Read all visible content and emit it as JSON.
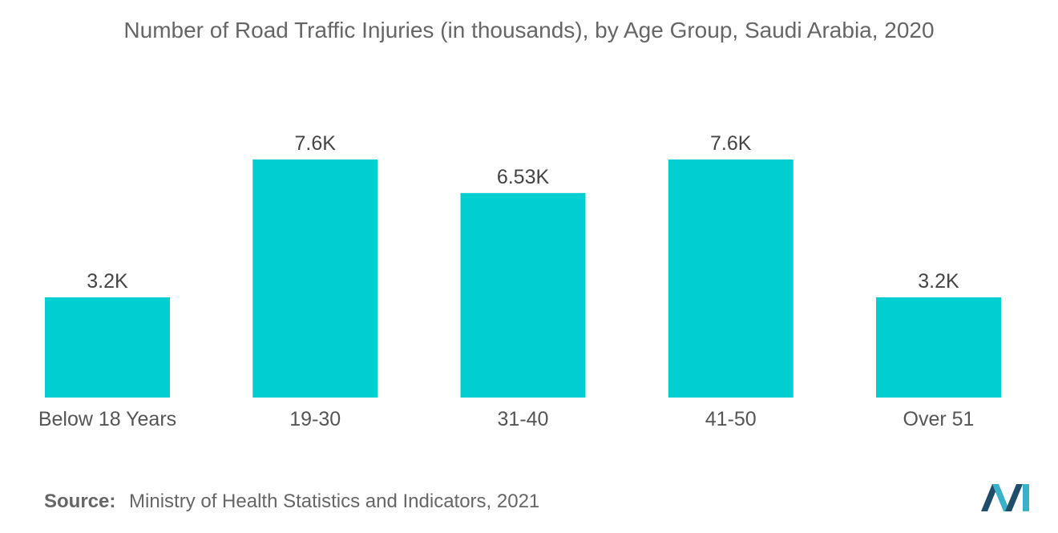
{
  "chart_data": {
    "type": "bar",
    "title": "Number of Road Traffic Injuries (in thousands), by Age Group, Saudi Arabia, 2020",
    "categories": [
      "Below 18 Years",
      "19-30",
      "31-40",
      "41-50",
      "Over 51"
    ],
    "values": [
      3.2,
      7.6,
      6.53,
      7.6,
      3.2
    ],
    "data_labels": [
      "3.2K",
      "7.6K",
      "6.53K",
      "7.6K",
      "3.2K"
    ],
    "xlabel": "",
    "ylabel": "",
    "ylim": [
      0,
      7.6
    ],
    "grid": false,
    "bar_color": "#00CED1"
  },
  "source": {
    "label": "Source:",
    "text": "Ministry of Health Statistics and Indicators, 2021"
  },
  "colors": {
    "bar": "#00CED1",
    "logo_dark": "#1f4e6b",
    "logo_light": "#3ab0c9"
  },
  "logo": {
    "icon": "mordor-intelligence-logo-icon"
  }
}
